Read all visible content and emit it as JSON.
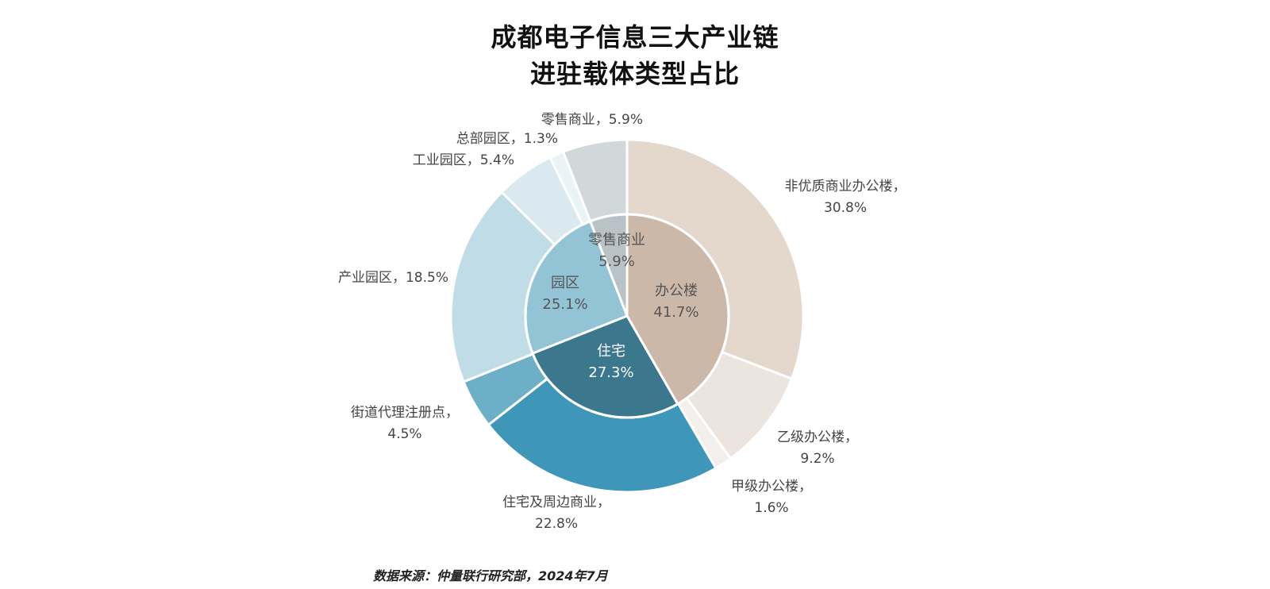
{
  "title_line1": "成都电子信息三大产业链",
  "title_line2": "进驻载体类型占比",
  "source": "数据来源：仲量联行研究部，2024年7月",
  "chart_data": {
    "type": "pie",
    "subtype": "nested-donut",
    "inner": [
      {
        "name": "办公楼",
        "value": 41.7,
        "value_label": "41.7%",
        "color": "#ccb8a8",
        "text_color": "#555555"
      },
      {
        "name": "住宅",
        "value": 27.3,
        "value_label": "27.3%",
        "color": "#3b778d",
        "text_color": "#ffffff"
      },
      {
        "name": "园区",
        "value": 25.1,
        "value_label": "25.1%",
        "color": "#92c4d6",
        "text_color": "#555555"
      },
      {
        "name": "零售商业",
        "value": 5.9,
        "value_label": "5.9%",
        "color": "#b9c2c5",
        "text_color": "#555555"
      }
    ],
    "outer": [
      {
        "name": "非优质商业办公楼",
        "value": 30.8,
        "label_line1": "非优质商业办公楼，",
        "label_line2": "30.8%",
        "color": "#e4d7cb"
      },
      {
        "name": "乙级办公楼",
        "value": 9.2,
        "label_line1": "乙级办公楼，",
        "label_line2": "9.2%",
        "color": "#ece4df"
      },
      {
        "name": "甲级办公楼",
        "value": 1.6,
        "label_line1": "甲级办公楼，",
        "label_line2": "1.6%",
        "color": "#f3efec"
      },
      {
        "name": "住宅及周边商业",
        "value": 22.8,
        "label_line1": "住宅及周边商业，",
        "label_line2": "22.8%",
        "color": "#3e97b8"
      },
      {
        "name": "街道代理注册点",
        "value": 4.5,
        "label_line1": "街道代理注册点，",
        "label_line2": "4.5%",
        "color": "#6eafc8"
      },
      {
        "name": "产业园区",
        "value": 18.5,
        "label_line1": "产业园区，18.5%",
        "label_line2": "",
        "color": "#c0dde7"
      },
      {
        "name": "工业园区",
        "value": 5.4,
        "label_line1": "工业园区，5.4%",
        "label_line2": "",
        "color": "#d9e9ef"
      },
      {
        "name": "总部园区",
        "value": 1.3,
        "label_line1": "总部园区，1.3%",
        "label_line2": "",
        "color": "#eaf3f6"
      },
      {
        "name": "零售商业",
        "value": 5.9,
        "label_line1": "零售商业，5.9%",
        "label_line2": "",
        "color": "#d1d8da"
      }
    ]
  }
}
